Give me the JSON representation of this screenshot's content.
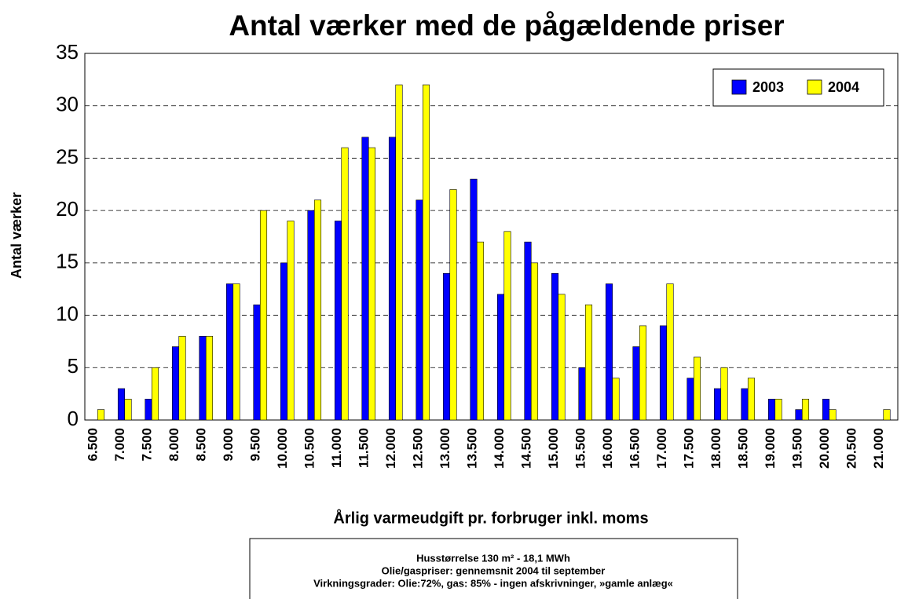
{
  "chart_data": {
    "type": "bar",
    "title": "Antal værker med de pågældende priser",
    "x_label": "Årlig varmeudgift pr. forbruger inkl. moms",
    "y_label": "Antal værker",
    "categories": [
      "6.500",
      "7.000",
      "7.500",
      "8.000",
      "8.500",
      "9.000",
      "9.500",
      "10.000",
      "10.500",
      "11.000",
      "11.500",
      "12.000",
      "12.500",
      "13.000",
      "13.500",
      "14.000",
      "14.500",
      "15.000",
      "15.500",
      "16.000",
      "16.500",
      "17.000",
      "17.500",
      "18.000",
      "18.500",
      "19.000",
      "19.500",
      "20.000",
      "20.500",
      "21.000"
    ],
    "series": [
      {
        "name": "2003",
        "color": "#0000ff",
        "values": [
          0,
          3,
          2,
          7,
          8,
          13,
          11,
          15,
          20,
          19,
          27,
          27,
          21,
          14,
          23,
          12,
          17,
          14,
          5,
          13,
          7,
          9,
          4,
          3,
          3,
          2,
          1,
          2,
          0,
          0
        ]
      },
      {
        "name": "2004",
        "color": "#ffff00",
        "values": [
          1,
          2,
          5,
          8,
          8,
          13,
          20,
          19,
          21,
          26,
          26,
          32,
          32,
          22,
          17,
          18,
          15,
          12,
          11,
          4,
          9,
          13,
          6,
          5,
          4,
          2,
          2,
          1,
          0,
          1
        ]
      }
    ],
    "ylim": [
      0,
      35
    ],
    "yticks": [
      0,
      5,
      10,
      15,
      20,
      25,
      30,
      35
    ],
    "grid": true,
    "legend": "upper right",
    "annotation": [
      "Husstørrelse 130 m² - 18,1 MWh",
      "Olie/gaspriser: gennemsnit 2004 til september",
      "Virkningsgrader: Olie:72%, gas: 85% - ingen afskrivninger, »gamle anlæg«"
    ]
  }
}
